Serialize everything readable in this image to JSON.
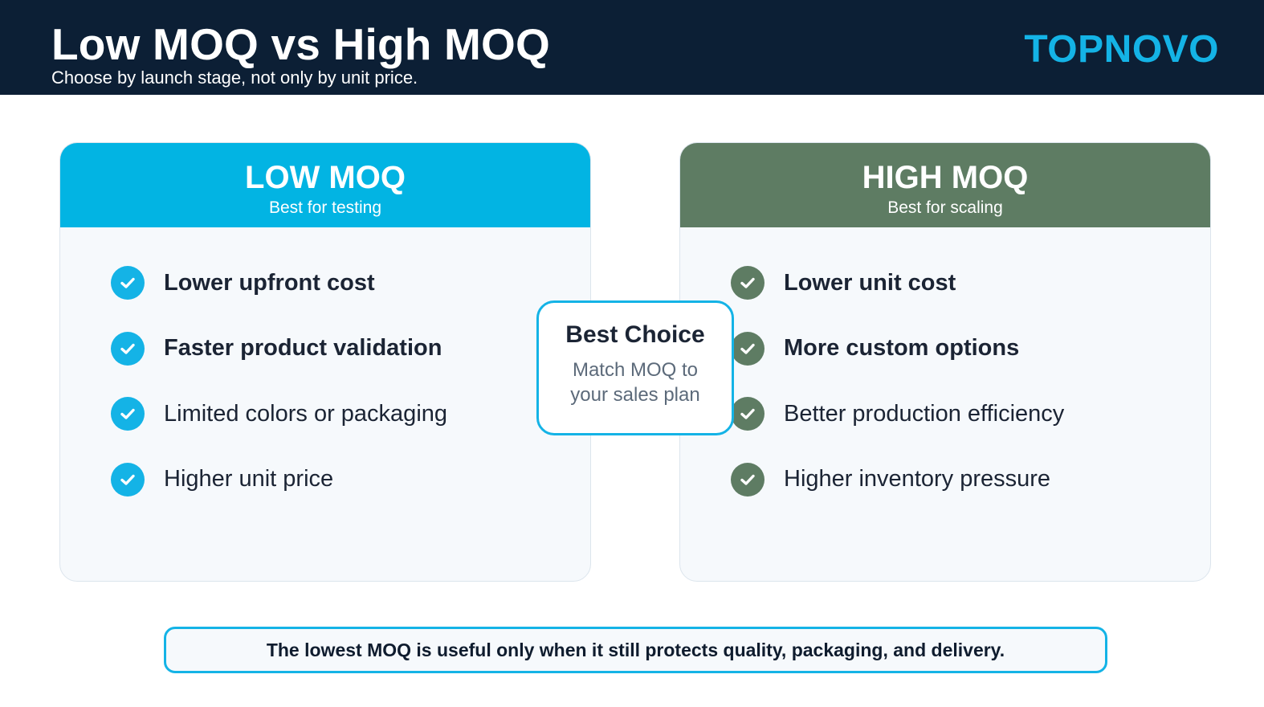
{
  "header": {
    "title": "Low MOQ vs High MOQ",
    "subtitle": "Choose by launch stage, not only by unit price.",
    "brand": "TOPNOVO"
  },
  "colors": {
    "header_bg": "#0c1f35",
    "accent_blue": "#14b3e6",
    "low_header": "#02b4e3",
    "high_header": "#5e7c63",
    "card_bg": "#f6f9fc"
  },
  "low_moq": {
    "title": "LOW MOQ",
    "subtitle": "Best for testing",
    "icon": "check-circle-icon",
    "items": [
      {
        "label": "Lower upfront cost",
        "bold": true
      },
      {
        "label": "Faster product validation",
        "bold": true
      },
      {
        "label": "Limited colors or packaging",
        "bold": false
      },
      {
        "label": "Higher unit price",
        "bold": false
      }
    ]
  },
  "high_moq": {
    "title": "HIGH MOQ",
    "subtitle": "Best for scaling",
    "icon": "check-circle-icon",
    "items": [
      {
        "label": "Lower unit cost",
        "bold": true
      },
      {
        "label": "More custom options",
        "bold": true
      },
      {
        "label": "Better production efficiency",
        "bold": false
      },
      {
        "label": "Higher inventory pressure",
        "bold": false
      }
    ]
  },
  "center": {
    "title": "Best Choice",
    "line1": "Match MOQ to",
    "line2": "your sales plan"
  },
  "footer": {
    "note": "The lowest MOQ is useful only when it still protects quality, packaging, and delivery."
  }
}
